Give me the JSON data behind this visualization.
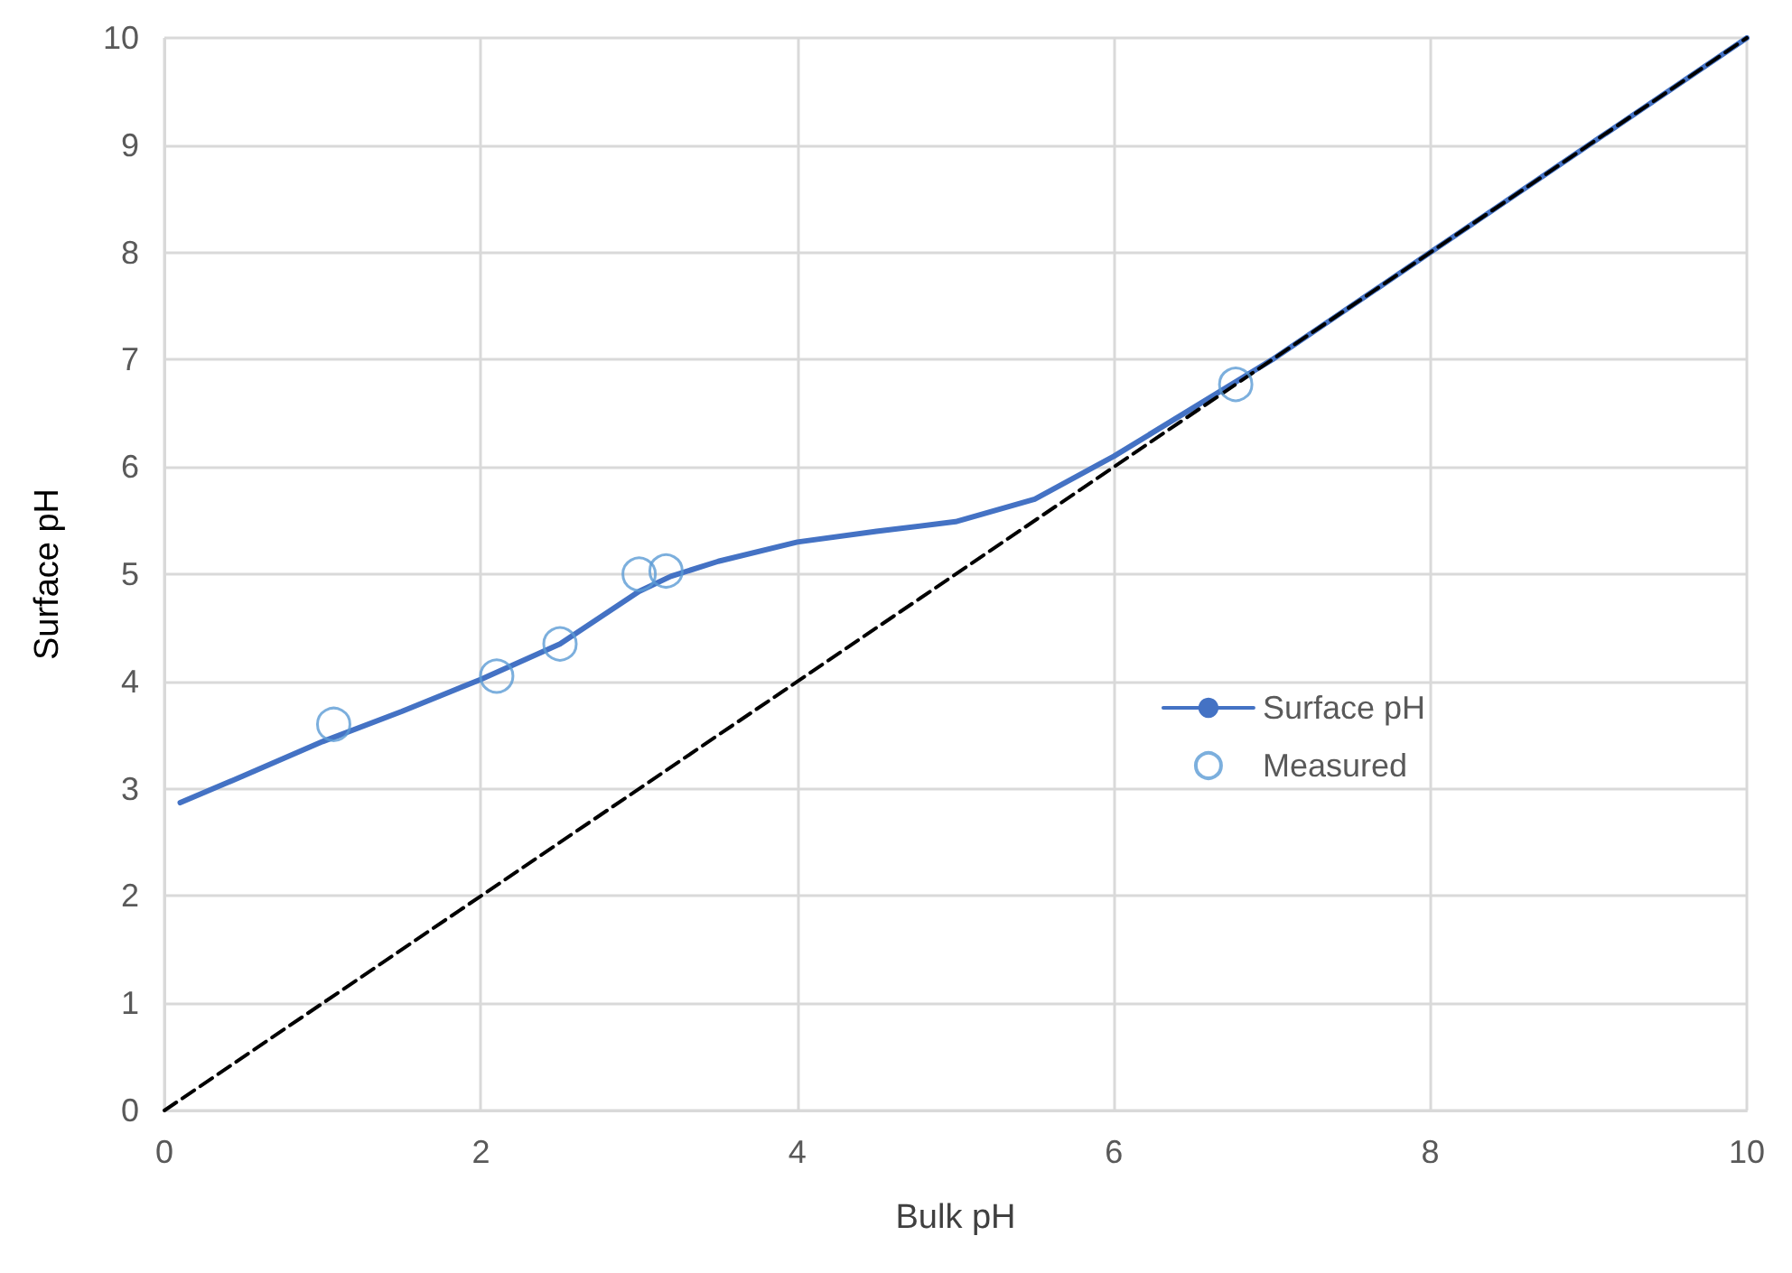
{
  "chart_data": {
    "type": "line",
    "xlabel": "Bulk pH",
    "ylabel": "Surface pH",
    "xlim": [
      0,
      10
    ],
    "ylim": [
      0,
      10
    ],
    "xticks": [
      0,
      2,
      4,
      6,
      8,
      10
    ],
    "yticks": [
      0,
      1,
      2,
      3,
      4,
      5,
      6,
      7,
      8,
      9,
      10
    ],
    "grid": true,
    "legend": "right",
    "series": [
      {
        "name": "Surface pH",
        "type": "line",
        "color": "#4472c4",
        "marker": "none",
        "line_style": "solid",
        "x": [
          0.1,
          0.5,
          1,
          1.5,
          2,
          2.5,
          3,
          3.2,
          3.5,
          4,
          4.5,
          5,
          5.5,
          6,
          7,
          8,
          9,
          10
        ],
        "values": [
          2.87,
          3.12,
          3.44,
          3.72,
          4.02,
          4.35,
          4.84,
          4.98,
          5.12,
          5.3,
          5.4,
          5.49,
          5.7,
          6.1,
          7.0,
          8.0,
          9.0,
          10.0
        ]
      },
      {
        "name": "Measured",
        "type": "scatter",
        "color": "#5b9bd5",
        "marker": "circle",
        "x": [
          1.07,
          2.1,
          2.5,
          3.0,
          3.17,
          6.77
        ],
        "values": [
          3.6,
          4.05,
          4.35,
          5.0,
          5.03,
          6.77
        ]
      },
      {
        "type": "line",
        "color": "#000000",
        "marker": "none",
        "line_style": "dashed",
        "x": [
          0,
          10
        ],
        "values": [
          0,
          10
        ]
      }
    ]
  }
}
